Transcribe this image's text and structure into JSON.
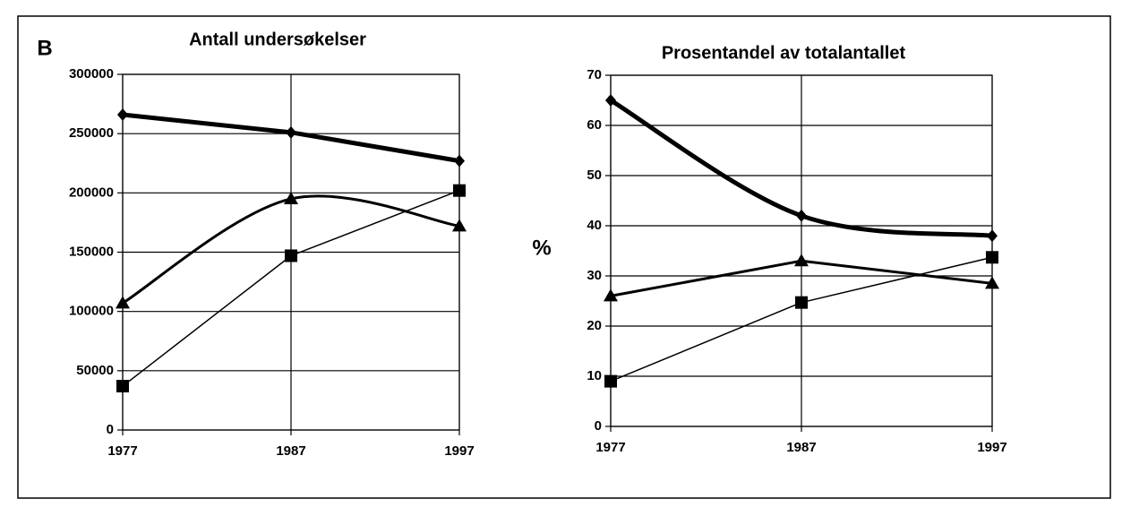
{
  "chart_data": [
    {
      "type": "line",
      "panel_label": "B",
      "title": "Antall undersøkelser",
      "x": [
        1977,
        1987,
        1997
      ],
      "xlim": [
        1977,
        1997
      ],
      "xticks": [
        1977,
        1987,
        1997
      ],
      "ylim": [
        0,
        300000
      ],
      "yticks": [
        0,
        50000,
        100000,
        150000,
        200000,
        250000,
        300000
      ],
      "grid": true,
      "series": [
        {
          "color": "#000000",
          "marker": "diamond",
          "width": 5,
          "smooth": false,
          "values": [
            266000,
            251000,
            227000
          ]
        },
        {
          "color": "#000000",
          "marker": "triangle",
          "width": 3,
          "smooth": true,
          "values": [
            107000,
            195000,
            172000
          ]
        },
        {
          "color": "#000000",
          "marker": "square",
          "width": 1.5,
          "smooth": false,
          "values": [
            37000,
            147000,
            202000
          ]
        }
      ]
    },
    {
      "type": "line",
      "title": "Prosentandel av totalantallet",
      "ylabel": "%",
      "x": [
        1977,
        1987,
        1997
      ],
      "xlim": [
        1977,
        1997
      ],
      "xticks": [
        1977,
        1987,
        1997
      ],
      "ylim": [
        0,
        70
      ],
      "yticks": [
        0,
        10,
        20,
        30,
        40,
        50,
        60,
        70
      ],
      "grid": true,
      "series": [
        {
          "color": "#000000",
          "marker": "diamond",
          "width": 5,
          "smooth": true,
          "values": [
            65,
            42,
            38
          ]
        },
        {
          "color": "#000000",
          "marker": "triangle",
          "width": 3,
          "smooth": false,
          "values": [
            26,
            33,
            28.5
          ]
        },
        {
          "color": "#000000",
          "marker": "square",
          "width": 1.5,
          "smooth": false,
          "values": [
            9,
            24.7,
            33.7
          ]
        }
      ]
    }
  ]
}
